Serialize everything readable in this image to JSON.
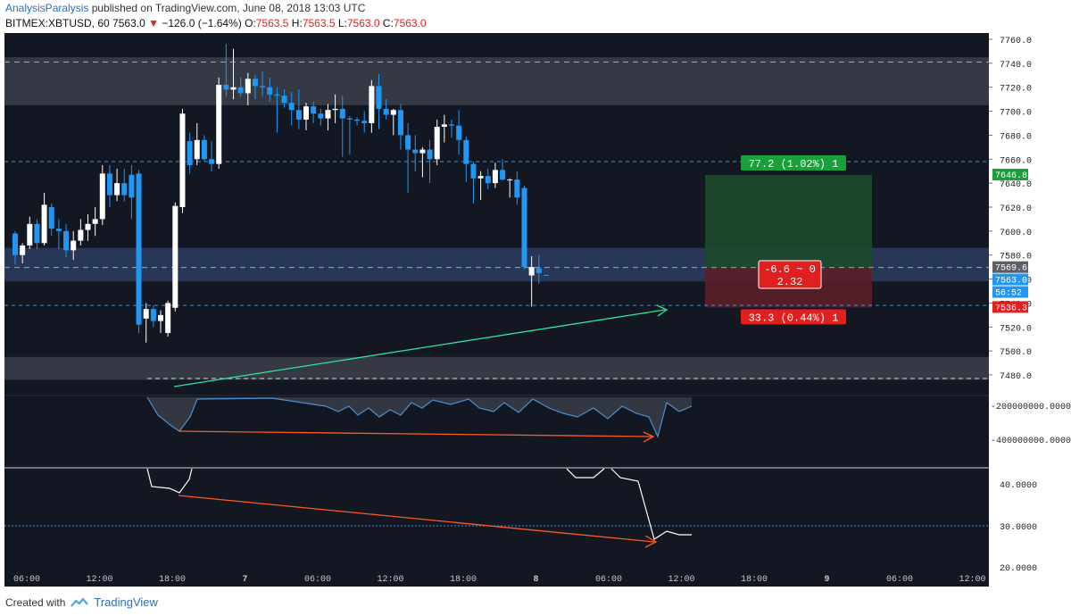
{
  "header": {
    "author": "AnalysisParalysis",
    "published": " published on TradingView.com, June 08, 2018 13:03 UTC",
    "symbol": "BITMEX:XBTUSD, 60",
    "last": "7563.0",
    "change": "−126.0 (−1.64%)",
    "o_label": "O:",
    "o": "7563.5",
    "h_label": "H:",
    "h": "7563.5",
    "l_label": "L:",
    "l": "7563.0",
    "c_label": "C:",
    "c": "7563.0"
  },
  "footer": {
    "created": "Created with",
    "brand": "TradingView"
  },
  "colors": {
    "bg": "#131722",
    "up": "#ffffff",
    "down": "#2196f3",
    "zone_gray": "#3a3d47",
    "zone_blue": "#2c3d5e",
    "target_green": "#1d4a2b",
    "stop_red": "#5b1f28",
    "green_line": "#2ee59d",
    "orange_line": "#ff5a1f"
  },
  "chart_data": {
    "type": "candlestick",
    "price_axis": {
      "range": [
        7470,
        7770
      ],
      "ticks": [
        "7480.0",
        "7500.0",
        "7520.0",
        "7540.0",
        "7560.0",
        "7580.0",
        "7600.0",
        "7620.0",
        "7640.0",
        "7660.0",
        "7680.0",
        "7700.0",
        "7720.0",
        "7740.0",
        "7760.0"
      ]
    },
    "time_axis": [
      "06:00",
      "12:00",
      "18:00",
      "7",
      "06:00",
      "12:00",
      "18:00",
      "8",
      "06:00",
      "12:00",
      "18:00",
      "9",
      "06:00",
      "12:00"
    ],
    "candles": [
      [
        7598,
        7600,
        7572,
        7580
      ],
      [
        7580,
        7590,
        7573,
        7588
      ],
      [
        7588,
        7612,
        7585,
        7606
      ],
      [
        7606,
        7610,
        7585,
        7590
      ],
      [
        7590,
        7632,
        7588,
        7622
      ],
      [
        7620,
        7623,
        7596,
        7602
      ],
      [
        7602,
        7610,
        7585,
        7600
      ],
      [
        7600,
        7606,
        7578,
        7584
      ],
      [
        7584,
        7600,
        7576,
        7592
      ],
      [
        7592,
        7610,
        7588,
        7601
      ],
      [
        7601,
        7614,
        7592,
        7606
      ],
      [
        7606,
        7620,
        7596,
        7610
      ],
      [
        7610,
        7655,
        7605,
        7648
      ],
      [
        7648,
        7655,
        7620,
        7630
      ],
      [
        7630,
        7652,
        7625,
        7640
      ],
      [
        7640,
        7652,
        7625,
        7630
      ],
      [
        7647,
        7655,
        7610,
        7628
      ],
      [
        7648,
        7651,
        7515,
        7522
      ],
      [
        7527,
        7540,
        7507,
        7535
      ],
      [
        7535,
        7538,
        7520,
        7525
      ],
      [
        7525,
        7534,
        7515,
        7530
      ],
      [
        7515,
        7542,
        7512,
        7540
      ],
      [
        7536,
        7624,
        7533,
        7621
      ],
      [
        7620,
        7702,
        7615,
        7698
      ],
      [
        7675,
        7682,
        7648,
        7655
      ],
      [
        7660,
        7690,
        7655,
        7676
      ],
      [
        7676,
        7680,
        7658,
        7660
      ],
      [
        7660,
        7675,
        7650,
        7656
      ],
      [
        7656,
        7728,
        7652,
        7722
      ],
      [
        7722,
        7756,
        7712,
        7718
      ],
      [
        7718,
        7752,
        7710,
        7720
      ],
      [
        7720,
        7728,
        7712,
        7715
      ],
      [
        7715,
        7732,
        7705,
        7727
      ],
      [
        7727,
        7730,
        7710,
        7721
      ],
      [
        7721,
        7733,
        7712,
        7720
      ],
      [
        7720,
        7728,
        7708,
        7714
      ],
      [
        7714,
        7720,
        7682,
        7713
      ],
      [
        7713,
        7718,
        7703,
        7707
      ],
      [
        7707,
        7716,
        7688,
        7701
      ],
      [
        7701,
        7718,
        7685,
        7693
      ],
      [
        7693,
        7707,
        7684,
        7704
      ],
      [
        7704,
        7708,
        7690,
        7698
      ],
      [
        7698,
        7702,
        7688,
        7694
      ],
      [
        7694,
        7706,
        7684,
        7701
      ],
      [
        7701,
        7714,
        7690,
        7702
      ],
      [
        7702,
        7713,
        7662,
        7694
      ],
      [
        7694,
        7696,
        7664,
        7693
      ],
      [
        7693,
        7695,
        7688,
        7692
      ],
      [
        7692,
        7700,
        7682,
        7690
      ],
      [
        7690,
        7726,
        7682,
        7721
      ],
      [
        7721,
        7731,
        7685,
        7702
      ],
      [
        7702,
        7710,
        7693,
        7697
      ],
      [
        7697,
        7702,
        7680,
        7701
      ],
      [
        7701,
        7706,
        7668,
        7680
      ],
      [
        7680,
        7690,
        7632,
        7668
      ],
      [
        7668,
        7680,
        7650,
        7665
      ],
      [
        7665,
        7670,
        7645,
        7668
      ],
      [
        7668,
        7676,
        7640,
        7660
      ],
      [
        7660,
        7693,
        7655,
        7687
      ],
      [
        7687,
        7697,
        7674,
        7689
      ],
      [
        7689,
        7693,
        7678,
        7688
      ],
      [
        7688,
        7701,
        7664,
        7676
      ],
      [
        7676,
        7679,
        7641,
        7656
      ],
      [
        7656,
        7658,
        7623,
        7644
      ],
      [
        7644,
        7650,
        7626,
        7646
      ],
      [
        7646,
        7652,
        7635,
        7640
      ],
      [
        7640,
        7657,
        7636,
        7651
      ],
      [
        7651,
        7660,
        7642,
        7643
      ],
      [
        7643,
        7644,
        7628,
        7643
      ],
      [
        7643,
        7650,
        7622,
        7628
      ],
      [
        7636,
        7638,
        7568,
        7570
      ],
      [
        7563,
        7579,
        7537,
        7570
      ],
      [
        7569,
        7580,
        7556,
        7565
      ],
      [
        7563.5,
        7563.5,
        7563,
        7563
      ]
    ],
    "zones": [
      {
        "type": "supply",
        "from": 7705,
        "to": 7745
      },
      {
        "type": "demand",
        "from": 7476,
        "to": 7495
      },
      {
        "type": "support",
        "from": 7558,
        "to": 7586
      }
    ],
    "levels": [
      7741,
      7658,
      7569.6,
      7538,
      7477
    ],
    "position": {
      "entry": "7569.6",
      "target": "7646.8",
      "stop": "7536.3",
      "target_label": "77.2 (1.02%) 1",
      "stop_label": "33.3 (0.44%) 1",
      "center_label_1": "-6.6 ~ 0",
      "center_label_2": "2.32"
    },
    "price_tags": [
      "7646.8",
      "7569.6",
      "7563.0",
      "56:52",
      "7536.3"
    ],
    "indicator_1": {
      "ticks": [
        "-200000000.0000",
        "-400000000.0000"
      ]
    },
    "indicator_2": {
      "ticks": [
        "40.0000",
        "30.0000",
        "20.0000"
      ]
    }
  }
}
